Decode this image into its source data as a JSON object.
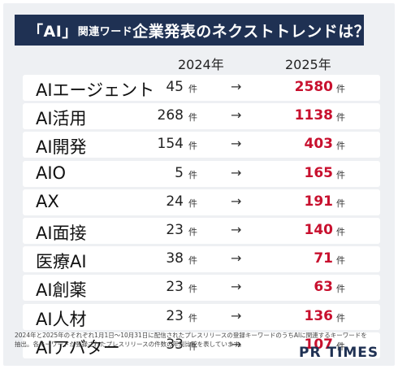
{
  "title": {
    "part1": "「AI」",
    "part2": "関連ワード",
    "part3": "企業発表のネクストトレンドは？"
  },
  "chart_data": {
    "type": "table",
    "columns": [
      "2024年",
      "2025年"
    ],
    "unit": "件",
    "arrow": "→",
    "rows": [
      {
        "name": "AIエージェント",
        "v2024": 45,
        "v2025": 2580
      },
      {
        "name": "AI活用",
        "v2024": 268,
        "v2025": 1138
      },
      {
        "name": "AI開発",
        "v2024": 154,
        "v2025": 403
      },
      {
        "name": "AIO",
        "v2024": 5,
        "v2025": 165
      },
      {
        "name": "AX",
        "v2024": 24,
        "v2025": 191
      },
      {
        "name": "AI面接",
        "v2024": 23,
        "v2025": 140
      },
      {
        "name": "医療AI",
        "v2024": 38,
        "v2025": 71
      },
      {
        "name": "AI創薬",
        "v2024": 23,
        "v2025": 63
      },
      {
        "name": "AI人材",
        "v2024": 23,
        "v2025": 136
      },
      {
        "name": "AIアバター",
        "v2024": 33,
        "v2025": 107
      }
    ]
  },
  "footnote": "2024年と2025年のそれぞれ1月1日〜10月31日に配信されたプレスリリースの登録キーワードのうちAIに関連するキーワードを抽出。各キーワードが登録されたプレスリリースの件数の年別比較を表しています。",
  "logo": "PR TIMES",
  "colors": {
    "title_bg": "#1f3153",
    "highlight": "#c8102e",
    "panel": "#eef0f3"
  }
}
